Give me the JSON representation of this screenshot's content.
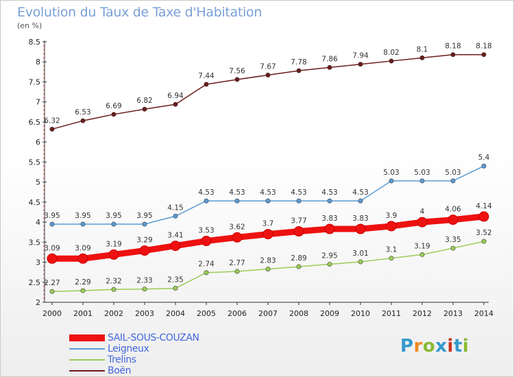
{
  "title": "Evolution du Taux de Taxe d'Habitation",
  "unit": "(en %)",
  "logo": {
    "text": "Proxiti",
    "letters": [
      "P",
      "r",
      "o",
      "x",
      "i",
      "t",
      "i"
    ],
    "letter_colors": [
      "#3399cc",
      "#ee8822",
      "#88bb33",
      "#3399cc",
      "#cc3322",
      "#3399cc",
      "#88bb33"
    ]
  },
  "chart_data": {
    "type": "line",
    "title": "Evolution du Taux de Taxe d'Habitation",
    "ylabel": "(en %)",
    "xlabel": "",
    "ylim": [
      2,
      8.5
    ],
    "yticks": [
      "2",
      "2.5",
      "3",
      "3.5",
      "4",
      "4.5",
      "5",
      "5.5",
      "6",
      "6.5",
      "7",
      "7.5",
      "8",
      "8.5"
    ],
    "categories": [
      "2000",
      "2001",
      "2002",
      "2003",
      "2004",
      "2005",
      "2006",
      "2007",
      "2008",
      "2009",
      "2010",
      "2011",
      "2012",
      "2013",
      "2014"
    ],
    "series": [
      {
        "name": "Boën",
        "color": "#6b1a1a",
        "values": [
          6.32,
          6.53,
          6.69,
          6.82,
          6.94,
          7.44,
          7.56,
          7.67,
          7.78,
          7.86,
          7.94,
          8.02,
          8.1,
          8.18,
          8.18
        ],
        "labels": [
          "6.32",
          "6.53",
          "6.69",
          "6.82",
          "6.94",
          "7.44",
          "7.56",
          "7.67",
          "7.78",
          "7.86",
          "7.94",
          "8.02",
          "8.1",
          "8.18",
          "8.18"
        ]
      },
      {
        "name": "Leigneux",
        "color": "#5b9bd5",
        "values": [
          3.95,
          3.95,
          3.95,
          3.95,
          4.15,
          4.53,
          4.53,
          4.53,
          4.53,
          4.53,
          4.53,
          5.03,
          5.03,
          5.03,
          5.4
        ],
        "labels": [
          "3.95",
          "3.95",
          "3.95",
          "3.95",
          "4.15",
          "4.53",
          "4.53",
          "4.53",
          "4.53",
          "4.53",
          "4.53",
          "5.03",
          "5.03",
          "5.03",
          "5.4"
        ]
      },
      {
        "name": "SAIL-SOUS-COUZAN",
        "color": "#ee1111",
        "values": [
          3.09,
          3.09,
          3.19,
          3.29,
          3.41,
          3.53,
          3.62,
          3.7,
          3.77,
          3.83,
          3.83,
          3.9,
          4,
          4.06,
          4.14
        ],
        "labels": [
          "3.09",
          "3.09",
          "3.19",
          "3.29",
          "3.41",
          "3.53",
          "3.62",
          "3.7",
          "3.77",
          "3.83",
          "3.83",
          "3.9",
          "4",
          "4.06",
          "4.14"
        ]
      },
      {
        "name": "Trelins",
        "color": "#99cc55",
        "values": [
          2.27,
          2.29,
          2.32,
          2.33,
          2.35,
          2.74,
          2.77,
          2.83,
          2.89,
          2.95,
          3.01,
          3.1,
          3.19,
          3.35,
          3.52
        ],
        "labels": [
          "2.27",
          "2.29",
          "2.32",
          "2.33",
          "2.35",
          "2.74",
          "2.77",
          "2.83",
          "2.89",
          "2.95",
          "3.01",
          "3.1",
          "3.19",
          "3.35",
          "3.52"
        ]
      }
    ],
    "legend": [
      {
        "name": "SAIL-SOUS-COUZAN",
        "color": "#ee1111",
        "style": "thick"
      },
      {
        "name": "Leigneux",
        "color": "#5b9bd5",
        "style": "thin"
      },
      {
        "name": "Trelins",
        "color": "#99cc55",
        "style": "thin"
      },
      {
        "name": "Boën",
        "color": "#6b1a1a",
        "style": "thin"
      }
    ],
    "legend_position": "bottom-left",
    "grid": false
  }
}
